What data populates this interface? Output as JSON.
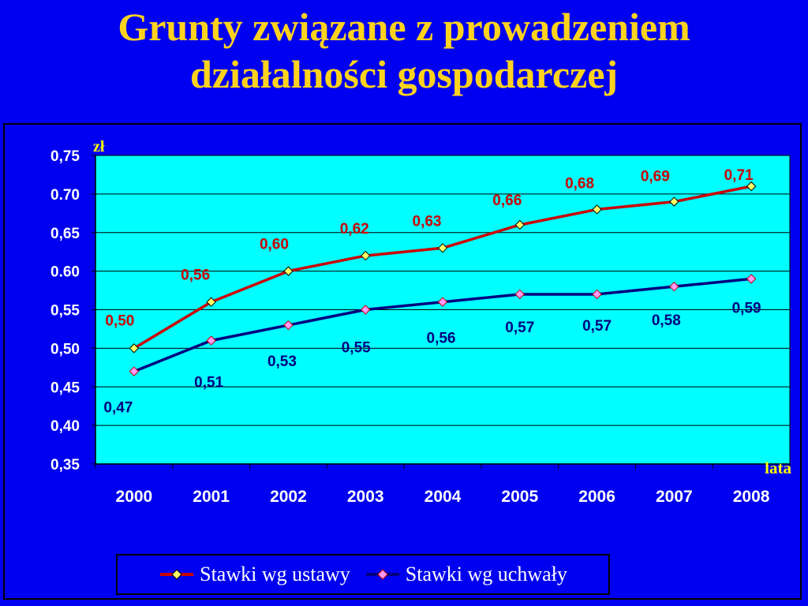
{
  "title_lines": [
    "Grunty związane z prowadzeniem",
    "działalności gospodarczej"
  ],
  "colors": {
    "background": "#0000f0",
    "plot_area": "#00ffff",
    "title": "#ffd21e",
    "series_ustawy": "#cc0000",
    "series_uchwaly": "#000080",
    "marker_ustawy": "#ffff66",
    "marker_uchwaly": "#ff99ff",
    "axis_units": "#ffff00"
  },
  "chart_data": {
    "type": "line",
    "categories": [
      "2000",
      "2001",
      "2002",
      "2003",
      "2004",
      "2005",
      "2006",
      "2007",
      "2008"
    ],
    "xlabel": "lata",
    "ylabel": "zł",
    "ylim": [
      0.35,
      0.75
    ],
    "yticks": [
      "0,35",
      "0,40",
      "0,45",
      "0,50",
      "0,55",
      "0.60",
      "0,65",
      "0.70",
      "0,75"
    ],
    "grid": true,
    "legend_position": "bottom",
    "series": [
      {
        "name": "Stawki wg ustawy",
        "values": [
          0.5,
          0.56,
          0.6,
          0.62,
          0.63,
          0.66,
          0.68,
          0.69,
          0.71
        ],
        "labels": [
          "0,50",
          "0,56",
          "0,60",
          "0,62",
          "0,63",
          "0,66",
          "0,68",
          "0,69",
          "0,71"
        ]
      },
      {
        "name": "Stawki wg uchwały",
        "values": [
          0.47,
          0.51,
          0.53,
          0.55,
          0.56,
          0.57,
          0.57,
          0.58,
          0.59
        ],
        "labels": [
          "0,47",
          "0,51",
          "0,53",
          "0,55",
          "0,56",
          "0,57",
          "0,57",
          "0,58",
          "0,59"
        ]
      }
    ]
  }
}
